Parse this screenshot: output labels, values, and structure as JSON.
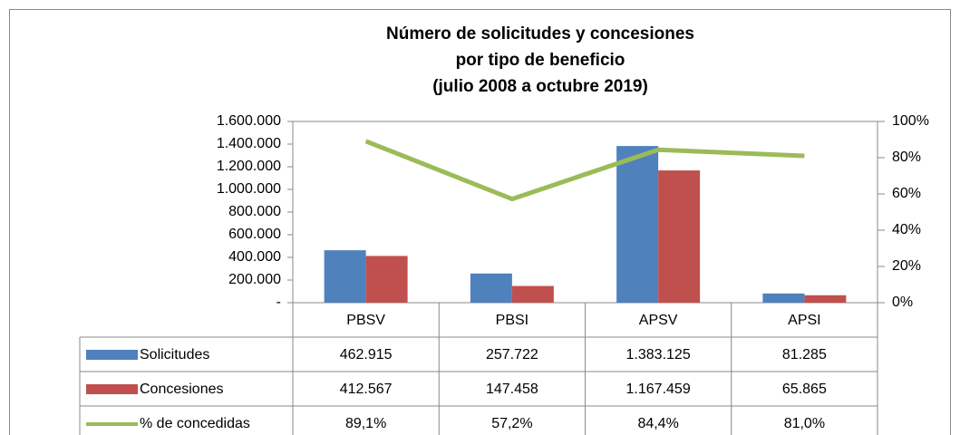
{
  "chart_data": {
    "type": "bar",
    "title": [
      "Número de solicitudes y concesiones",
      "por tipo de beneficio",
      "(julio 2008 a octubre 2019)"
    ],
    "categories": [
      "PBSV",
      "PBSI",
      "APSV",
      "APSI"
    ],
    "series": [
      {
        "name": "Solicitudes",
        "color": "#4f81bd",
        "values": [
          462915,
          257722,
          1383125,
          81285
        ],
        "value_labels": [
          "462.915",
          "257.722",
          "1.383.125",
          "81.285"
        ]
      },
      {
        "name": "Concesiones",
        "color": "#c0504d",
        "values": [
          412567,
          147458,
          1167459,
          65865
        ],
        "value_labels": [
          "412.567",
          "147.458",
          "1.167.459",
          "65.865"
        ]
      },
      {
        "name": "% de concedidas",
        "color": "#9bbb59",
        "type": "line",
        "axis": "y2",
        "values": [
          89.1,
          57.2,
          84.4,
          81.0
        ],
        "value_labels": [
          "89,1%",
          "57,2%",
          "84,4%",
          "81,0%"
        ]
      }
    ],
    "ylim": [
      0,
      1600000
    ],
    "yticks": [
      {
        "value": 0,
        "label": "-"
      },
      {
        "value": 200000,
        "label": "200.000"
      },
      {
        "value": 400000,
        "label": "400.000"
      },
      {
        "value": 600000,
        "label": "600.000"
      },
      {
        "value": 800000,
        "label": "800.000"
      },
      {
        "value": 1000000,
        "label": "1.000.000"
      },
      {
        "value": 1200000,
        "label": "1.200.000"
      },
      {
        "value": 1400000,
        "label": "1.400.000"
      },
      {
        "value": 1600000,
        "label": "1.600.000"
      }
    ],
    "y2lim": [
      0,
      100
    ],
    "y2ticks": [
      {
        "value": 0,
        "label": "0%"
      },
      {
        "value": 20,
        "label": "20%"
      },
      {
        "value": 40,
        "label": "40%"
      },
      {
        "value": 60,
        "label": "60%"
      },
      {
        "value": 80,
        "label": "80%"
      },
      {
        "value": 100,
        "label": "100%"
      }
    ]
  }
}
